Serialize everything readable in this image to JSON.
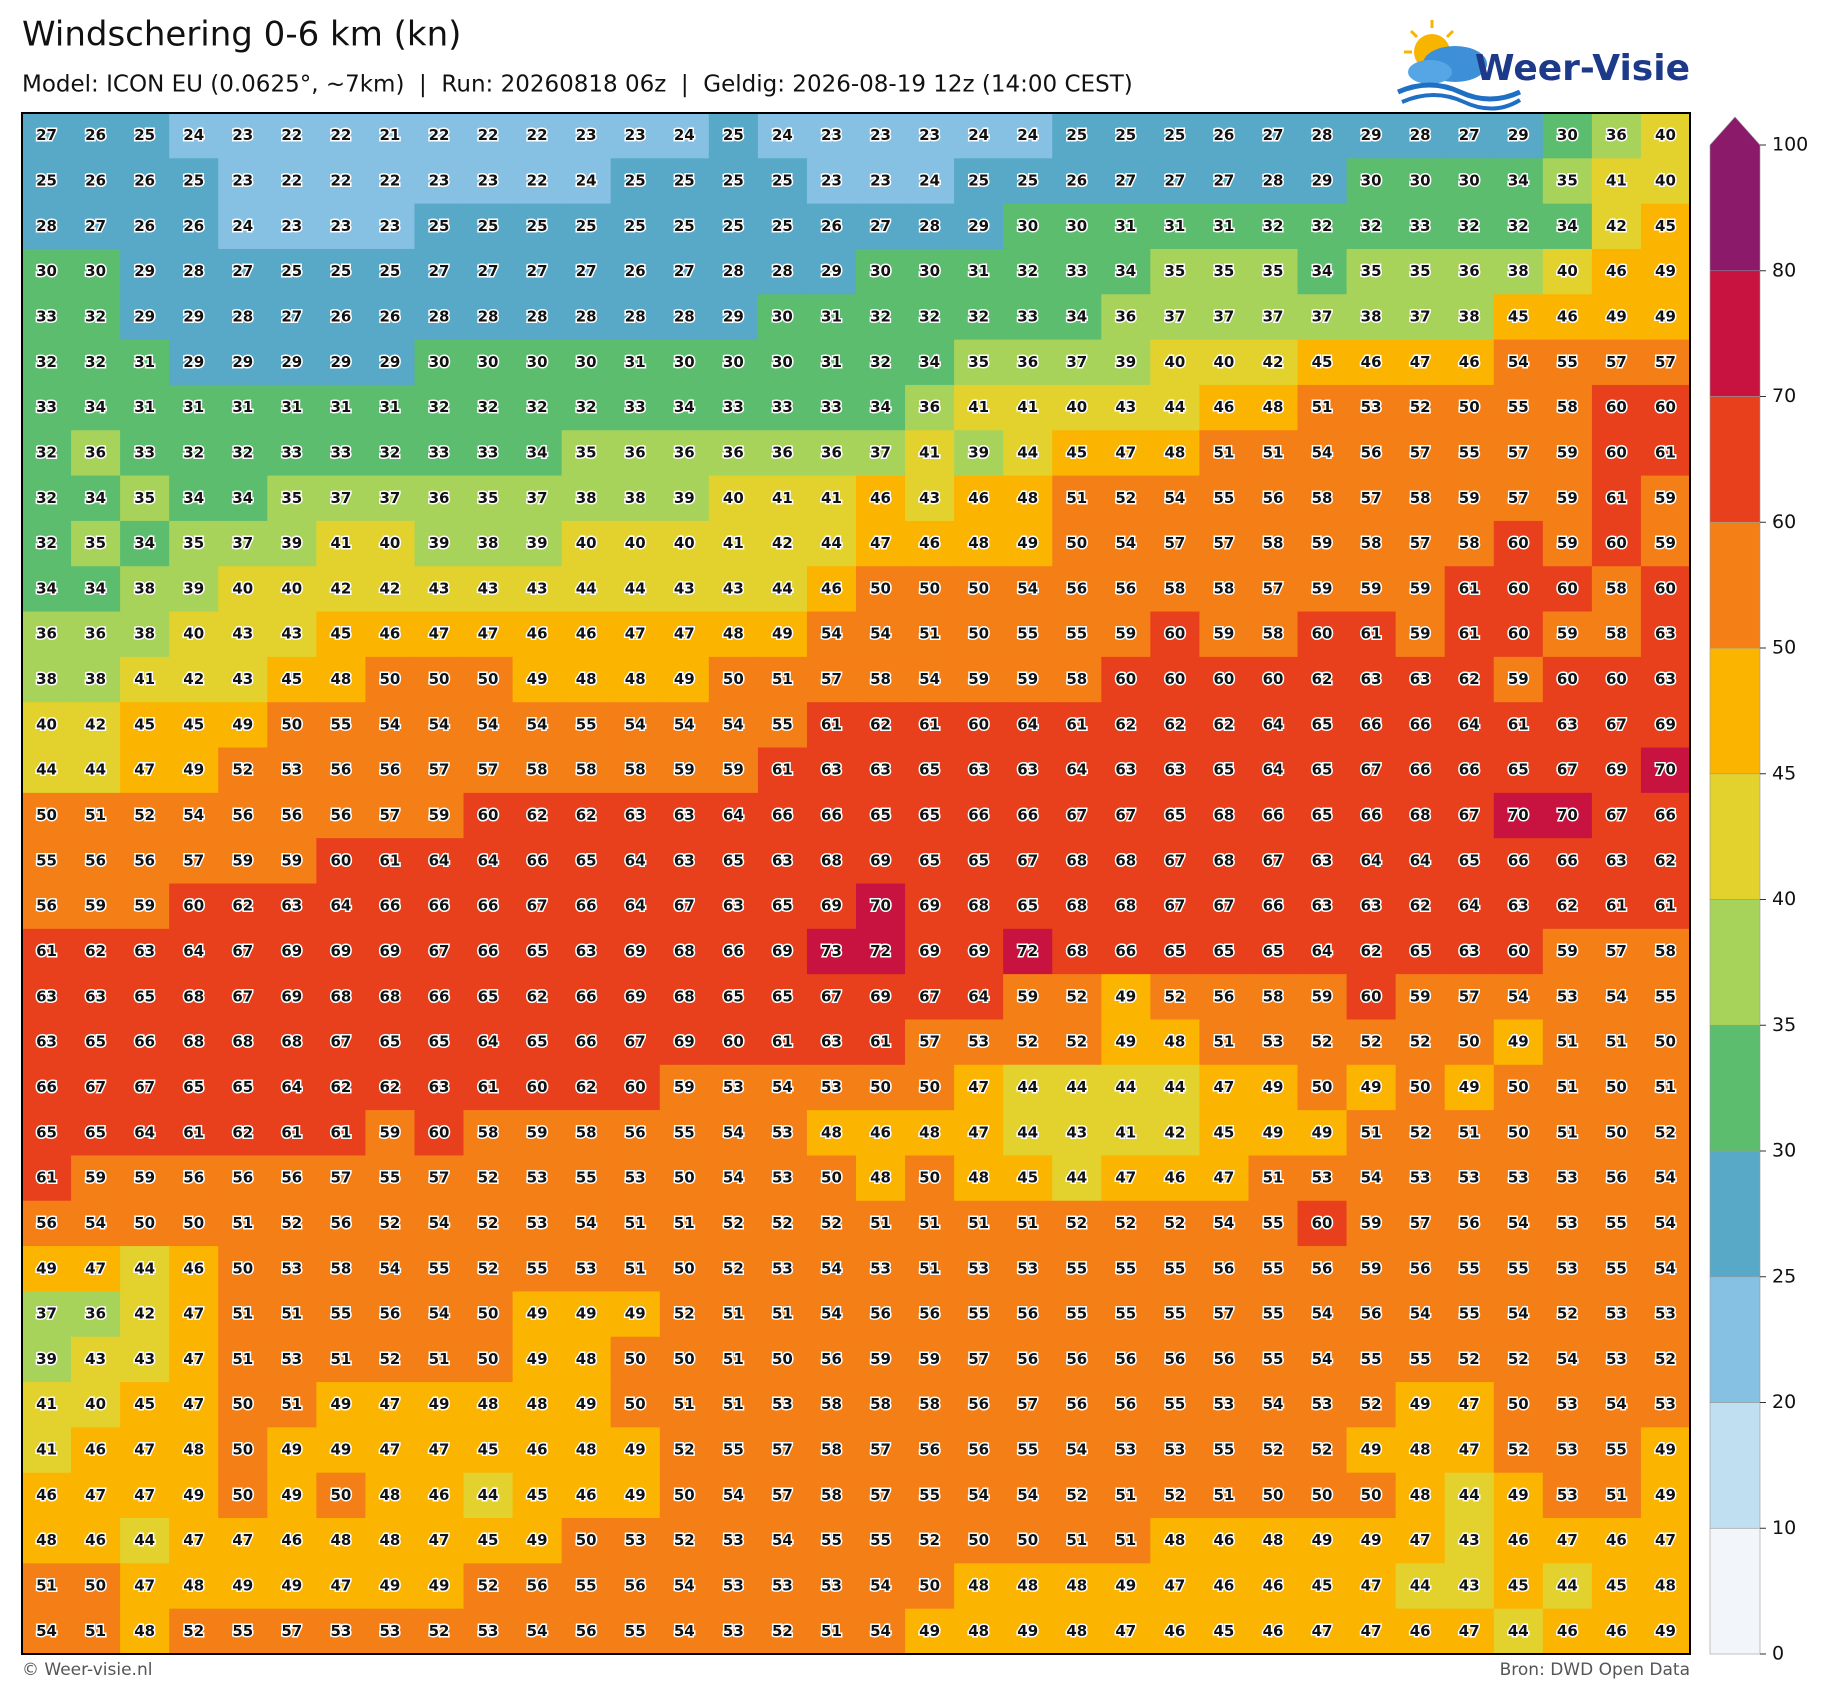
{
  "header": {
    "title": "Windschering 0-6 km (kn)",
    "subtitle": "Model: ICON EU (0.0625°, ~7km)  |  Run: 20260818 06z  |  Geldig: 2026-08-19 12z (14:00 CEST)",
    "logo": "Weer-Visie"
  },
  "map": {
    "rows": [
      [
        27,
        26,
        25,
        24,
        23,
        22,
        22,
        21,
        22,
        22,
        22,
        23,
        23,
        24,
        25,
        24,
        23,
        23,
        23,
        24,
        24,
        25,
        25,
        25,
        26,
        27,
        28,
        29,
        28,
        27,
        29,
        30,
        36,
        40
      ],
      [
        25,
        26,
        26,
        25,
        23,
        22,
        22,
        22,
        23,
        23,
        22,
        24,
        25,
        25,
        25,
        25,
        23,
        23,
        24,
        25,
        25,
        26,
        27,
        27,
        27,
        28,
        29,
        30,
        30,
        30,
        34,
        35,
        41,
        40
      ],
      [
        28,
        27,
        26,
        26,
        24,
        23,
        23,
        23,
        25,
        25,
        25,
        25,
        25,
        25,
        25,
        25,
        26,
        27,
        28,
        29,
        30,
        30,
        31,
        31,
        31,
        32,
        32,
        32,
        33,
        32,
        32,
        34,
        42,
        45
      ],
      [
        30,
        30,
        29,
        28,
        27,
        25,
        25,
        25,
        27,
        27,
        27,
        27,
        26,
        27,
        28,
        28,
        29,
        30,
        30,
        31,
        32,
        33,
        34,
        35,
        35,
        35,
        34,
        35,
        35,
        36,
        38,
        40,
        46,
        49
      ],
      [
        33,
        32,
        29,
        29,
        28,
        27,
        26,
        26,
        28,
        28,
        28,
        28,
        28,
        28,
        29,
        30,
        31,
        32,
        32,
        32,
        33,
        34,
        36,
        37,
        37,
        37,
        37,
        38,
        37,
        38,
        45,
        46,
        49,
        49
      ],
      [
        32,
        32,
        31,
        29,
        29,
        29,
        29,
        29,
        30,
        30,
        30,
        30,
        31,
        30,
        30,
        30,
        31,
        32,
        34,
        35,
        36,
        37,
        39,
        40,
        40,
        42,
        45,
        46,
        47,
        46,
        54,
        55,
        57,
        57
      ],
      [
        33,
        34,
        31,
        31,
        31,
        31,
        31,
        31,
        32,
        32,
        32,
        32,
        33,
        34,
        33,
        33,
        33,
        34,
        36,
        41,
        41,
        40,
        43,
        44,
        46,
        48,
        51,
        53,
        52,
        50,
        55,
        58,
        60,
        60
      ],
      [
        32,
        36,
        33,
        32,
        32,
        33,
        33,
        32,
        33,
        33,
        34,
        35,
        36,
        36,
        36,
        36,
        36,
        37,
        41,
        39,
        44,
        45,
        47,
        48,
        51,
        51,
        54,
        56,
        57,
        55,
        57,
        59,
        60,
        61
      ],
      [
        32,
        34,
        35,
        34,
        34,
        35,
        37,
        37,
        36,
        35,
        37,
        38,
        38,
        39,
        40,
        41,
        41,
        46,
        43,
        46,
        48,
        51,
        52,
        54,
        55,
        56,
        58,
        57,
        58,
        59,
        57,
        59,
        61,
        59
      ],
      [
        32,
        35,
        34,
        35,
        37,
        39,
        41,
        40,
        39,
        38,
        39,
        40,
        40,
        40,
        41,
        42,
        44,
        47,
        46,
        48,
        49,
        50,
        54,
        57,
        57,
        58,
        59,
        58,
        57,
        58,
        60,
        59,
        60,
        59
      ],
      [
        34,
        34,
        38,
        39,
        40,
        40,
        42,
        42,
        43,
        43,
        43,
        44,
        44,
        43,
        43,
        44,
        46,
        50,
        50,
        50,
        54,
        56,
        56,
        58,
        58,
        57,
        59,
        59,
        59,
        61,
        60,
        60,
        58,
        60
      ],
      [
        36,
        36,
        38,
        40,
        43,
        43,
        45,
        46,
        47,
        47,
        46,
        46,
        47,
        47,
        48,
        49,
        54,
        54,
        51,
        50,
        55,
        55,
        59,
        60,
        59,
        58,
        60,
        61,
        59,
        61,
        60,
        59,
        58,
        63
      ],
      [
        38,
        38,
        41,
        42,
        43,
        45,
        48,
        50,
        50,
        50,
        49,
        48,
        48,
        49,
        50,
        51,
        57,
        58,
        54,
        59,
        59,
        58,
        60,
        60,
        60,
        60,
        62,
        63,
        63,
        62,
        59,
        60,
        60,
        63
      ],
      [
        40,
        42,
        45,
        45,
        49,
        50,
        55,
        54,
        54,
        54,
        54,
        55,
        54,
        54,
        54,
        55,
        61,
        62,
        61,
        60,
        64,
        61,
        62,
        62,
        62,
        64,
        65,
        66,
        66,
        64,
        61,
        63,
        67,
        69
      ],
      [
        44,
        44,
        47,
        49,
        52,
        53,
        56,
        56,
        57,
        57,
        58,
        58,
        58,
        59,
        59,
        61,
        63,
        63,
        65,
        63,
        63,
        64,
        63,
        63,
        65,
        64,
        65,
        67,
        66,
        66,
        65,
        67,
        69,
        70
      ],
      [
        50,
        51,
        52,
        54,
        56,
        56,
        56,
        57,
        59,
        60,
        62,
        62,
        63,
        63,
        64,
        66,
        66,
        65,
        65,
        66,
        66,
        67,
        67,
        65,
        68,
        66,
        65,
        66,
        68,
        67,
        70,
        70,
        67,
        66
      ],
      [
        55,
        56,
        56,
        57,
        59,
        59,
        60,
        61,
        64,
        64,
        66,
        65,
        64,
        63,
        65,
        63,
        68,
        69,
        65,
        65,
        67,
        68,
        68,
        67,
        68,
        67,
        63,
        64,
        64,
        65,
        66,
        66,
        63,
        62
      ],
      [
        56,
        59,
        59,
        60,
        62,
        63,
        64,
        66,
        66,
        66,
        67,
        66,
        64,
        67,
        63,
        65,
        69,
        70,
        69,
        68,
        65,
        68,
        68,
        67,
        67,
        66,
        63,
        63,
        62,
        64,
        63,
        62,
        61,
        61
      ],
      [
        61,
        62,
        63,
        64,
        67,
        69,
        69,
        69,
        67,
        66,
        65,
        63,
        69,
        68,
        66,
        69,
        73,
        72,
        69,
        69,
        72,
        68,
        66,
        65,
        65,
        65,
        64,
        62,
        65,
        63,
        60,
        59,
        57,
        58
      ],
      [
        63,
        63,
        65,
        68,
        67,
        69,
        68,
        68,
        66,
        65,
        62,
        66,
        69,
        68,
        65,
        65,
        67,
        69,
        67,
        64,
        59,
        52,
        49,
        52,
        56,
        58,
        59,
        60,
        59,
        57,
        54,
        53,
        54,
        55
      ],
      [
        63,
        65,
        66,
        68,
        68,
        68,
        67,
        65,
        65,
        64,
        65,
        66,
        67,
        69,
        60,
        61,
        63,
        61,
        57,
        53,
        52,
        52,
        49,
        48,
        51,
        53,
        52,
        52,
        52,
        50,
        49,
        51,
        51,
        50
      ],
      [
        66,
        67,
        67,
        65,
        65,
        64,
        62,
        62,
        63,
        61,
        60,
        62,
        60,
        59,
        53,
        54,
        53,
        50,
        50,
        47,
        44,
        44,
        44,
        44,
        47,
        49,
        50,
        49,
        50,
        49,
        50,
        51,
        50,
        51
      ],
      [
        65,
        65,
        64,
        61,
        62,
        61,
        61,
        59,
        60,
        58,
        59,
        58,
        56,
        55,
        54,
        53,
        48,
        46,
        48,
        47,
        44,
        43,
        41,
        42,
        45,
        49,
        49,
        51,
        52,
        51,
        50,
        51,
        50,
        52
      ],
      [
        61,
        59,
        59,
        56,
        56,
        56,
        57,
        55,
        57,
        52,
        53,
        55,
        53,
        50,
        54,
        53,
        50,
        48,
        50,
        48,
        45,
        44,
        47,
        46,
        47,
        51,
        53,
        54,
        53,
        53,
        53,
        53,
        56,
        54
      ],
      [
        56,
        54,
        50,
        50,
        51,
        52,
        56,
        52,
        54,
        52,
        53,
        54,
        51,
        51,
        52,
        52,
        52,
        51,
        51,
        51,
        51,
        52,
        52,
        52,
        54,
        55,
        60,
        59,
        57,
        56,
        54,
        53,
        55,
        54
      ],
      [
        49,
        47,
        44,
        46,
        50,
        53,
        58,
        54,
        55,
        52,
        55,
        53,
        51,
        50,
        52,
        53,
        54,
        53,
        51,
        53,
        53,
        55,
        55,
        55,
        56,
        55,
        56,
        59,
        56,
        55,
        55,
        53,
        55,
        54
      ],
      [
        37,
        36,
        42,
        47,
        51,
        51,
        55,
        56,
        54,
        50,
        49,
        49,
        49,
        52,
        51,
        51,
        54,
        56,
        56,
        55,
        56,
        55,
        55,
        55,
        57,
        55,
        54,
        56,
        54,
        55,
        54,
        52,
        53,
        53
      ],
      [
        39,
        43,
        43,
        47,
        51,
        53,
        51,
        52,
        51,
        50,
        49,
        48,
        50,
        50,
        51,
        50,
        56,
        59,
        59,
        57,
        56,
        56,
        56,
        56,
        56,
        55,
        54,
        55,
        55,
        52,
        52,
        54,
        53,
        52
      ],
      [
        41,
        40,
        45,
        47,
        50,
        51,
        49,
        47,
        49,
        48,
        48,
        49,
        50,
        51,
        51,
        53,
        58,
        58,
        58,
        56,
        57,
        56,
        56,
        55,
        53,
        54,
        53,
        52,
        49,
        47,
        50,
        53,
        54,
        53
      ],
      [
        41,
        46,
        47,
        48,
        50,
        49,
        49,
        47,
        47,
        45,
        46,
        48,
        49,
        52,
        55,
        57,
        58,
        57,
        56,
        56,
        55,
        54,
        53,
        53,
        55,
        52,
        52,
        49,
        48,
        47,
        52,
        53,
        55,
        49
      ],
      [
        46,
        47,
        47,
        49,
        50,
        49,
        50,
        48,
        46,
        44,
        45,
        46,
        49,
        50,
        54,
        57,
        58,
        57,
        55,
        54,
        54,
        52,
        51,
        52,
        51,
        50,
        50,
        50,
        48,
        44,
        49,
        53,
        51,
        49
      ],
      [
        48,
        46,
        44,
        47,
        47,
        46,
        48,
        48,
        47,
        45,
        49,
        50,
        53,
        52,
        53,
        54,
        55,
        55,
        52,
        50,
        50,
        51,
        51,
        48,
        46,
        48,
        49,
        49,
        47,
        43,
        46,
        47,
        46,
        47
      ],
      [
        51,
        50,
        47,
        48,
        49,
        49,
        47,
        49,
        49,
        52,
        56,
        55,
        56,
        54,
        53,
        53,
        53,
        54,
        50,
        48,
        48,
        48,
        49,
        47,
        46,
        46,
        45,
        47,
        44,
        43,
        45,
        44,
        45,
        48
      ],
      [
        54,
        51,
        48,
        52,
        55,
        57,
        53,
        53,
        52,
        53,
        54,
        56,
        55,
        54,
        53,
        52,
        51,
        54,
        49,
        48,
        49,
        48,
        47,
        46,
        45,
        46,
        47,
        47,
        46,
        47,
        44,
        46,
        46,
        49
      ]
    ]
  },
  "colorbar": {
    "ticks": [
      0,
      10,
      20,
      25,
      30,
      35,
      40,
      45,
      50,
      60,
      70,
      80,
      100
    ],
    "colors": [
      "#f2f6fa",
      "#c0dff0",
      "#86c0e3",
      "#58a8c8",
      "#5cbd6e",
      "#a8d35a",
      "#e3d22e",
      "#fbb400",
      "#f57f17",
      "#e8401c",
      "#c8123f",
      "#8b1a6a"
    ]
  },
  "footer": {
    "left": "© Weer-visie.nl",
    "right": "Bron: DWD Open Data"
  }
}
